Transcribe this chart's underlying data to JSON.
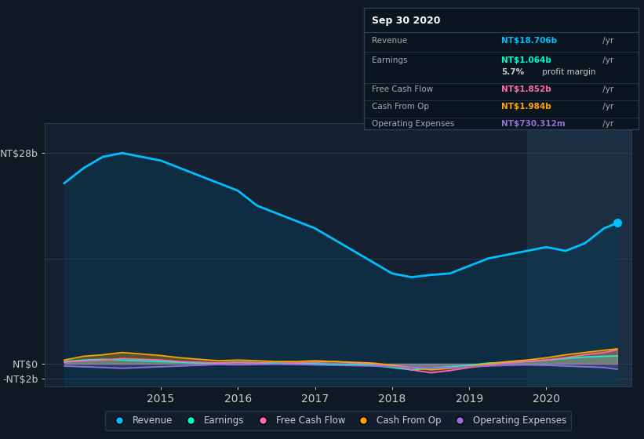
{
  "background_color": "#0f1923",
  "plot_bg_color": "#152030",
  "grid_color": "#2a3f55",
  "title_date": "Sep 30 2020",
  "info_box_bg": "#0a1520",
  "info_box_border": "#2a3f55",
  "ytick_labels": [
    "NT$28b",
    "NT$0",
    "-NT$2b"
  ],
  "ytick_values": [
    28,
    0,
    -2
  ],
  "ylim": [
    -3,
    32
  ],
  "xlim_start": 2013.5,
  "xlim_end": 2021.1,
  "highlight_start": 2019.75,
  "xtick_labels": [
    "2015",
    "2016",
    "2017",
    "2018",
    "2019",
    "2020"
  ],
  "xtick_positions": [
    2015,
    2016,
    2017,
    2018,
    2019,
    2020
  ],
  "series": {
    "revenue": {
      "color": "#00bfff",
      "label": "Revenue"
    },
    "earnings": {
      "color": "#00ffcc",
      "label": "Earnings"
    },
    "free_cash_flow": {
      "color": "#ff69b4",
      "label": "Free Cash Flow"
    },
    "cash_from_op": {
      "color": "#ffa500",
      "label": "Cash From Op"
    },
    "operating_expenses": {
      "color": "#9370db",
      "label": "Operating Expenses"
    }
  },
  "legend_bg": "#152030",
  "legend_border": "#2a3f55"
}
